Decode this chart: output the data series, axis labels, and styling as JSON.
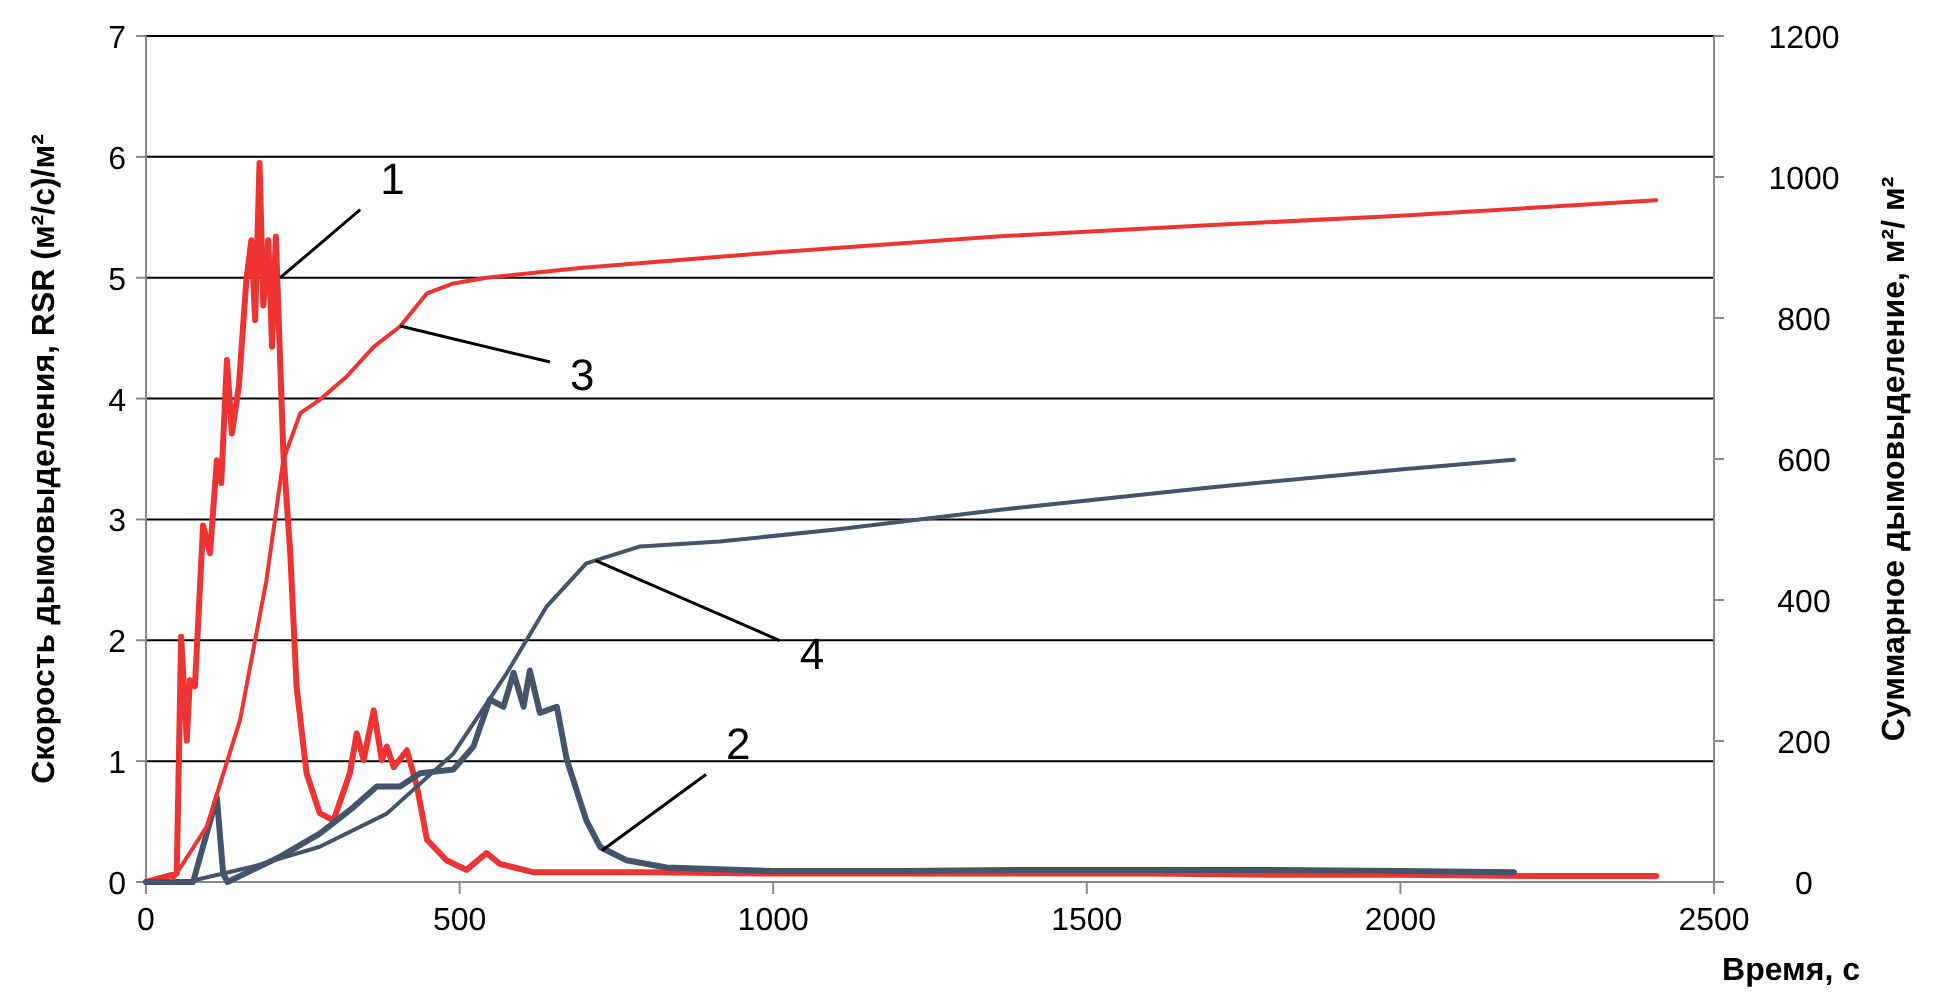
{
  "chart_data": {
    "type": "line",
    "xlabel": "Время, с",
    "ylabel": "Скорость дымовыделения, RSR (м²/с)/м²",
    "y2label": "Суммарное дымовыделение, м²/ м²",
    "xlim": [
      0,
      2500
    ],
    "xticks": [
      0,
      500,
      1000,
      1500,
      2000,
      2500
    ],
    "ylim": [
      0,
      7
    ],
    "yticks": [
      0,
      1,
      2,
      3,
      4,
      5,
      6,
      7
    ],
    "y2lim": [
      0,
      1200
    ],
    "y2ticks": [
      0,
      200,
      400,
      600,
      800,
      1000,
      1200
    ],
    "grid": "y",
    "marker": "none",
    "line_style": "solid",
    "series": [
      {
        "color": "#ee3333",
        "x": [
          0,
          49,
          56,
          65,
          70,
          78,
          91,
          102,
          113,
          120,
          129,
          137,
          148,
          160,
          168,
          174,
          181,
          187,
          195,
          201,
          207,
          219,
          230,
          240,
          256,
          277,
          299,
          325,
          336,
          347,
          363,
          376,
          384,
          395,
          416,
          432,
          448,
          479,
          511,
          543,
          564,
          618,
          800,
          1000,
          1200,
          1400,
          1600,
          1800,
          2000,
          2200,
          2408
        ],
        "values": [
          0,
          0.07,
          2.03,
          1.17,
          1.67,
          1.62,
          2.95,
          2.72,
          3.49,
          3.3,
          4.32,
          3.71,
          4.1,
          4.98,
          5.31,
          4.65,
          5.95,
          4.77,
          5.31,
          4.43,
          5.34,
          3.55,
          2.72,
          1.62,
          0.9,
          0.57,
          0.51,
          0.9,
          1.23,
          1.01,
          1.42,
          1.01,
          1.12,
          0.95,
          1.09,
          0.79,
          0.35,
          0.18,
          0.1,
          0.24,
          0.15,
          0.08,
          0.08,
          0.07,
          0.07,
          0.07,
          0.07,
          0.06,
          0.06,
          0.05,
          0.05
        ]
      },
      {
        "color": "#44546a",
        "x": [
          0,
          75,
          113,
          123,
          130,
          214,
          277,
          331,
          368,
          405,
          437,
          490,
          522,
          548,
          570,
          586,
          602,
          612,
          628,
          655,
          671,
          702,
          724,
          766,
          830,
          1000,
          1200,
          1400,
          1600,
          1800,
          2000,
          2181
        ],
        "values": [
          0,
          0,
          0.7,
          0.07,
          0,
          0.21,
          0.4,
          0.62,
          0.79,
          0.79,
          0.9,
          0.93,
          1.12,
          1.51,
          1.45,
          1.73,
          1.45,
          1.75,
          1.4,
          1.45,
          1.01,
          0.51,
          0.29,
          0.18,
          0.12,
          0.09,
          0.09,
          0.1,
          0.1,
          0.1,
          0.09,
          0.08
        ]
      },
      {
        "color": "#ee3333",
        "axis": "y2",
        "x": [
          0,
          40,
          97,
          150,
          192,
          219,
          246,
          277,
          320,
          363,
          405,
          448,
          490,
          543,
          692,
          1000,
          1362,
          1700,
          2000,
          2408
        ],
        "values": [
          0,
          0,
          79,
          230,
          428,
          599,
          665,
          684,
          717,
          759,
          788,
          835,
          849,
          857,
          871,
          893,
          916,
          932,
          945,
          967
        ]
      },
      {
        "color": "#44546a",
        "axis": "y2",
        "x": [
          0,
          65,
          171,
          277,
          384,
          490,
          575,
          639,
          702,
          788,
          915,
          1100,
          1362,
          1700,
          2000,
          2181
        ],
        "values": [
          0,
          0,
          22,
          50,
          97,
          182,
          296,
          391,
          452,
          476,
          483,
          500,
          528,
          560,
          585,
          599
        ]
      }
    ],
    "annotations": [
      {
        "text": "1",
        "x": 214,
        "y": 5.0
      },
      {
        "text": "2",
        "x": 727,
        "y": 0.26
      },
      {
        "text": "3",
        "x": 405,
        "y": 4.6
      },
      {
        "text": "4",
        "x": 717,
        "y": 2.66
      }
    ]
  }
}
